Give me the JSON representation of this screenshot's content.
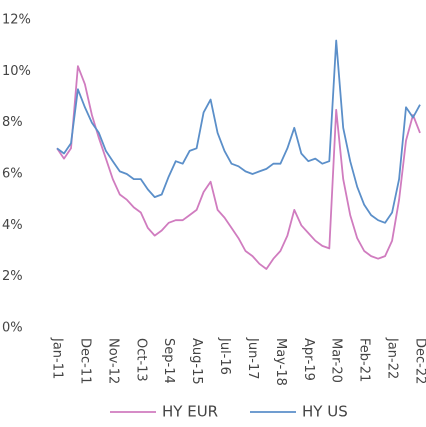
{
  "chart_data": {
    "type": "line",
    "categories": [
      "Jan-11",
      null,
      null,
      null,
      "Dec-11",
      null,
      null,
      null,
      "Nov-12",
      null,
      null,
      null,
      "Oct-13",
      null,
      null,
      null,
      "Sep-14",
      null,
      null,
      null,
      "Aug-15",
      null,
      null,
      null,
      "Jul-16",
      null,
      null,
      null,
      "Jun-17",
      null,
      null,
      null,
      "May-18",
      null,
      null,
      null,
      "Apr-19",
      null,
      null,
      null,
      "Mar-20",
      null,
      null,
      null,
      "Feb-21",
      null,
      null,
      null,
      "Jan-22",
      null,
      null,
      null,
      "Dec-22"
    ],
    "series": [
      {
        "name": "HY EUR",
        "color": "#d07cbf",
        "values": [
          7.0,
          6.6,
          7.0,
          10.2,
          9.5,
          8.3,
          7.4,
          6.6,
          5.8,
          5.2,
          5.0,
          4.7,
          4.5,
          3.9,
          3.6,
          3.8,
          4.1,
          4.2,
          4.2,
          4.4,
          4.6,
          5.3,
          5.7,
          4.6,
          4.3,
          3.9,
          3.5,
          3.0,
          2.8,
          2.5,
          2.3,
          2.7,
          3.0,
          3.6,
          4.6,
          4.0,
          3.7,
          3.4,
          3.2,
          3.1,
          8.5,
          5.8,
          4.4,
          3.5,
          3.0,
          2.8,
          2.7,
          2.8,
          3.4,
          5.0,
          7.3,
          8.3,
          7.6
        ]
      },
      {
        "name": "HY US",
        "color": "#5b8fc9",
        "values": [
          7.0,
          6.8,
          7.2,
          9.3,
          8.6,
          8.0,
          7.6,
          6.9,
          6.5,
          6.1,
          6.0,
          5.8,
          5.8,
          5.4,
          5.1,
          5.2,
          5.9,
          6.5,
          6.4,
          6.9,
          7.0,
          8.4,
          8.9,
          7.6,
          6.9,
          6.4,
          6.3,
          6.1,
          6.0,
          6.1,
          6.2,
          6.4,
          6.4,
          7.0,
          7.8,
          6.8,
          6.5,
          6.6,
          6.4,
          6.5,
          11.2,
          7.8,
          6.5,
          5.5,
          4.8,
          4.4,
          4.2,
          4.1,
          4.5,
          5.8,
          8.6,
          8.2,
          8.7
        ]
      }
    ],
    "ylim": [
      0,
      12
    ],
    "yticks": [
      {
        "value": 0,
        "label": "0%"
      },
      {
        "value": 2,
        "label": "2%"
      },
      {
        "value": 4,
        "label": "4%"
      },
      {
        "value": 6,
        "label": "6%"
      },
      {
        "value": 8,
        "label": "8%"
      },
      {
        "value": 10,
        "label": "10%"
      },
      {
        "value": 12,
        "label": "12%"
      }
    ],
    "legend": "bottom"
  }
}
